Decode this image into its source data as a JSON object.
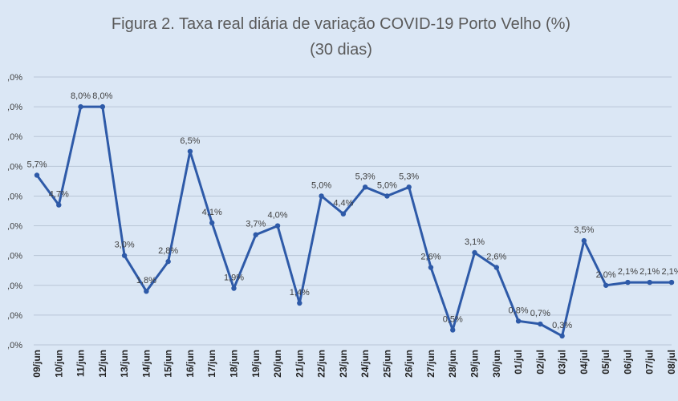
{
  "chart_data": {
    "type": "line",
    "title_line1": "Figura 2. Taxa real diária de variação COVID-19 Porto Velho (%)",
    "title_line2": "(30 dias)",
    "xlabel": "",
    "ylabel": "",
    "ylim": [
      0,
      9
    ],
    "y_tick_values": [
      0,
      1,
      2,
      3,
      4,
      5,
      6,
      7,
      8,
      9
    ],
    "y_tick_labels": [
      ",0%",
      ",0%",
      ",0%",
      ",0%",
      ",0%",
      ",0%",
      ",0%",
      ",0%",
      ",0%",
      ",0%"
    ],
    "grid": true,
    "line_color": "#2e5aa8",
    "categories": [
      "09/jun",
      "10/jun",
      "11/jun",
      "12/jun",
      "13/jun",
      "14/jun",
      "15/jun",
      "16/jun",
      "17/jun",
      "18/jun",
      "19/jun",
      "20/jun",
      "21/jun",
      "22/jun",
      "23/jun",
      "24/jun",
      "25/jun",
      "26/jun",
      "27/jun",
      "28/jun",
      "29/jun",
      "30/jun",
      "01/jul",
      "02/jul",
      "03/jul",
      "04/jul",
      "05/jul",
      "06/jul",
      "07/jul",
      "08/jul"
    ],
    "series": [
      {
        "name": "Taxa real diária de variação (%)",
        "values": [
          5.7,
          4.7,
          8.0,
          8.0,
          3.0,
          1.8,
          2.8,
          6.5,
          4.1,
          1.9,
          3.7,
          4.0,
          1.4,
          5.0,
          4.4,
          5.3,
          5.0,
          5.3,
          2.6,
          0.5,
          3.1,
          2.6,
          0.8,
          0.7,
          0.3,
          3.5,
          2.0,
          2.1,
          2.1,
          2.1
        ],
        "labels": [
          "5,7%",
          "4,7%",
          "8,0%",
          "8,0%",
          "3,0%",
          "1,8%",
          "2,8%",
          "6,5%",
          "4,1%",
          "1,9%",
          "3,7%",
          "4,0%",
          "1,4%",
          "5,0%",
          "4,4%",
          "5,3%",
          "5,0%",
          "5,3%",
          "2,6%",
          "0,5%",
          "3,1%",
          "2,6%",
          "0,8%",
          "0,7%",
          "0,3%",
          "3,5%",
          "2,0%",
          "2,1%",
          "2,1%",
          "2,1%"
        ]
      }
    ]
  }
}
